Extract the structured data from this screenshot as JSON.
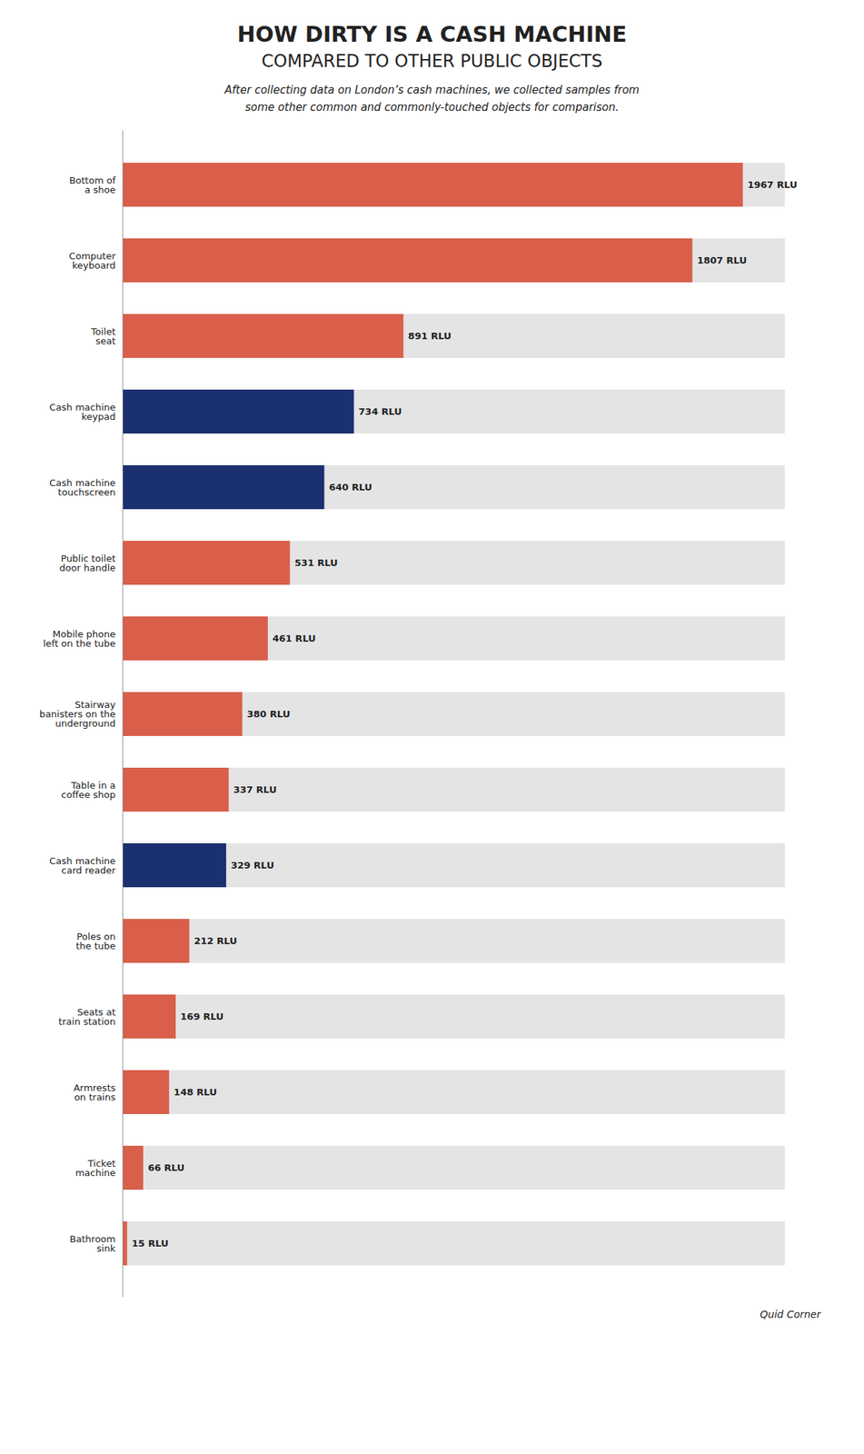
{
  "chart_data": {
    "type": "bar",
    "orientation": "horizontal",
    "title": "HOW DIRTY IS A CASH MACHINE\nCOMPARED TO OTHER PUBLIC OBJECTS",
    "subtitle": "After collecting data on London’s cash machines, we collected samples from\nsome other common and commonly-touched objects for comparison.",
    "caption": "Quid Corner",
    "categories": [
      "Bottom of\na shoe",
      "Computer\nkeyboard",
      "Toilet\nseat",
      "Cash machine\nkeypad",
      "Cash machine\ntouchscreen",
      "Public toilet\ndoor handle",
      "Mobile phone\nleft on the tube",
      "Stairway\nbanisters on the\nunderground",
      "Table in a\ncoffee shop",
      "Cash machine\ncard reader",
      "Poles on\nthe tube",
      "Seats at\ntrain station",
      "Armrests\non trains",
      "Ticket\nmachine",
      "Bathroom\nsink"
    ],
    "values": [
      1967,
      1807,
      891,
      734,
      640,
      531,
      461,
      380,
      337,
      329,
      212,
      169,
      148,
      66,
      15
    ],
    "value_labels": [
      "1967 RLU",
      "1807 RLU",
      "891 RLU",
      "734 RLU",
      "640 RLU",
      "531 RLU",
      "461 RLU",
      "380 RLU",
      "337 RLU",
      "329 RLU",
      "212 RLU",
      "169 RLU",
      "148 RLU",
      "66 RLU",
      "15 RLU"
    ],
    "colors": [
      "#D95F4B",
      "#D95F4B",
      "#D95F4B",
      "#1B3070",
      "#1B3070",
      "#D95F4B",
      "#D95F4B",
      "#D95F4B",
      "#D95F4B",
      "#1B3070",
      "#D95F4B",
      "#D95F4B",
      "#D95F4B",
      "#D95F4B",
      "#D95F4B"
    ],
    "xlim": [
      0,
      2100
    ],
    "data_labels": true,
    "tick_labels": "y",
    "grid": false
  }
}
